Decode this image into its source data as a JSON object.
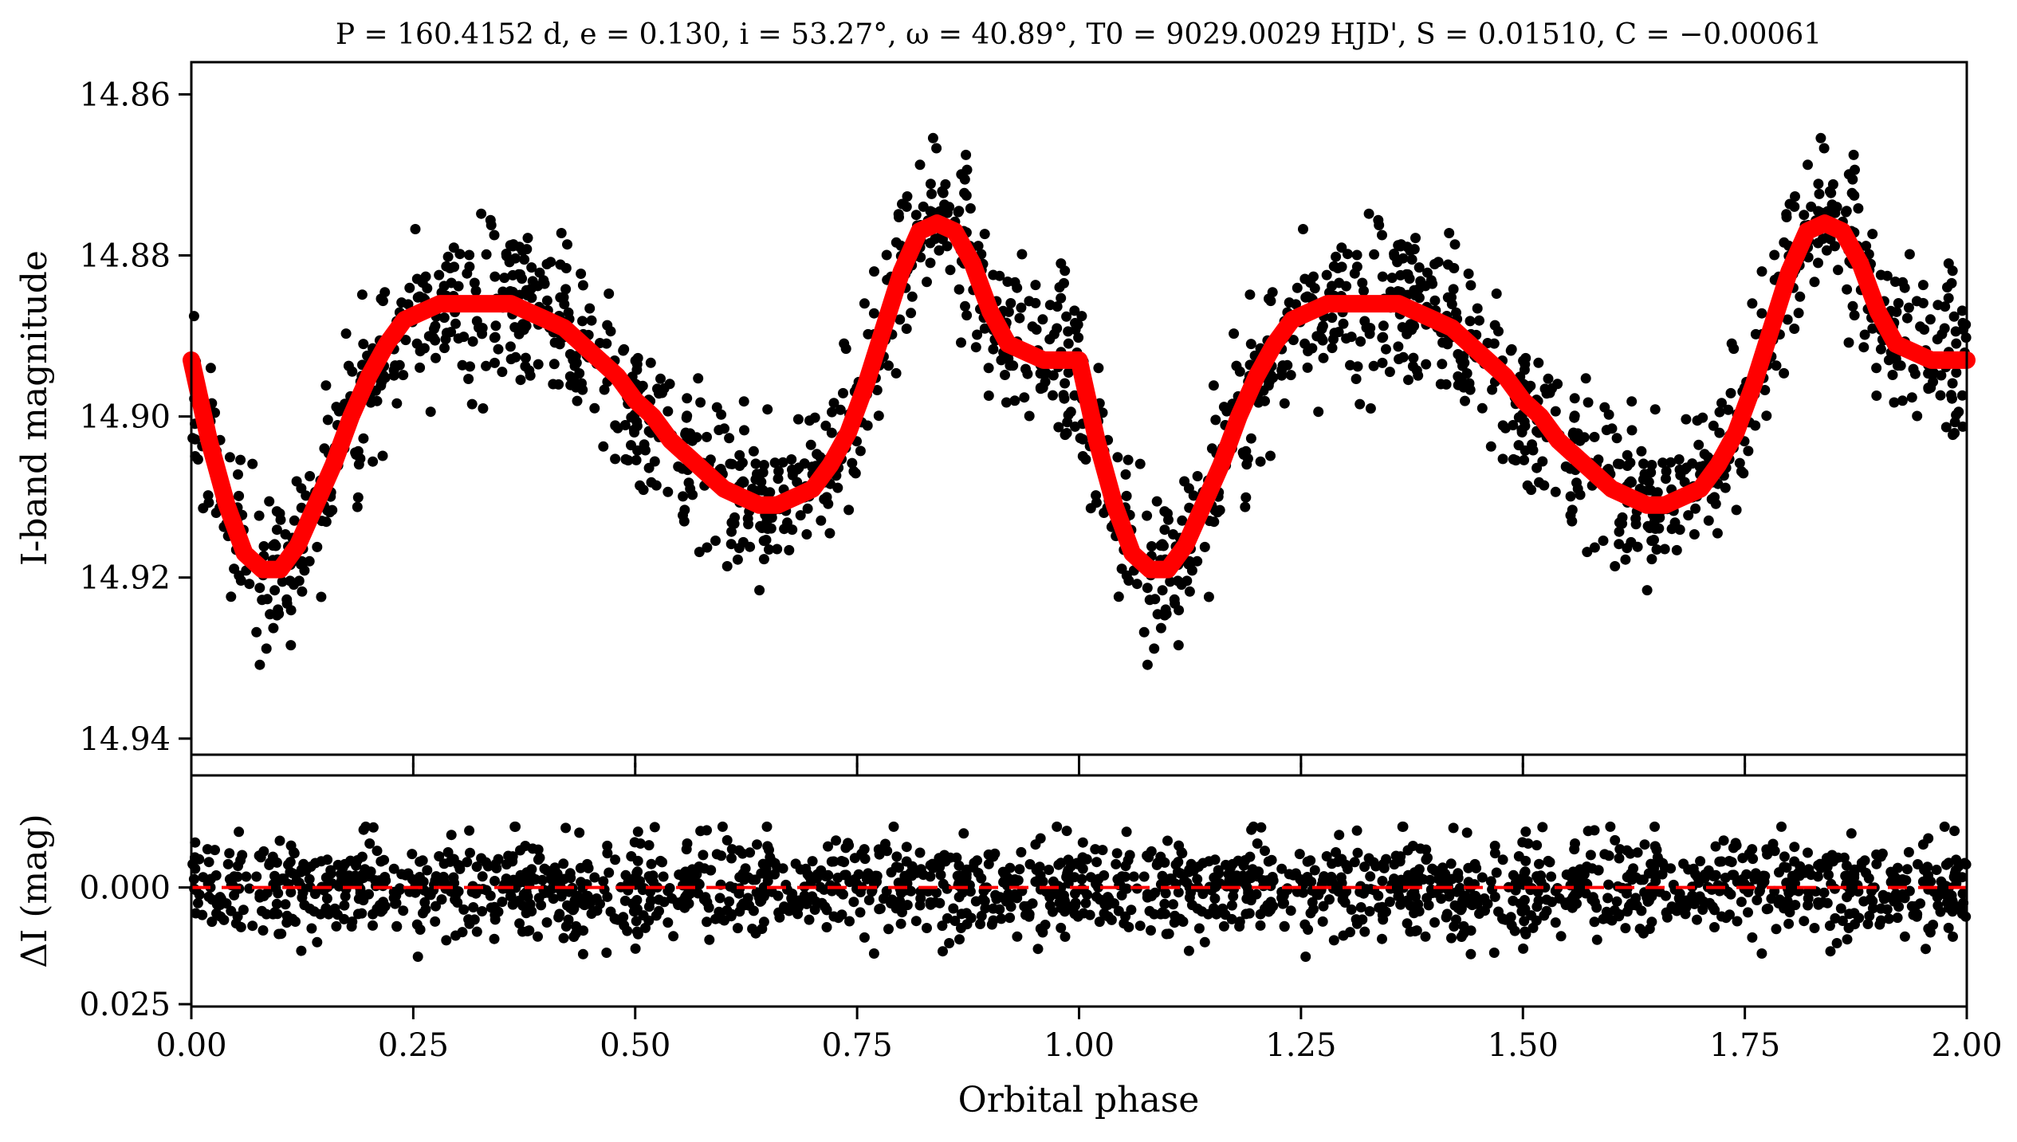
{
  "chart_data": [
    {
      "type": "scatter",
      "panel": "top",
      "title": "P = 160.4152 d, e = 0.130, i = 53.27°, ω = 40.89°, T0 = 9029.0029 HJD', S = 0.01510, C = −0.00061",
      "xlabel": "",
      "ylabel": "I-band magnitude",
      "xlim": [
        0.0,
        2.0
      ],
      "ylim": [
        14.856,
        14.942
      ],
      "y_inverted": true,
      "yticks": [
        "14.86",
        "14.88",
        "14.90",
        "14.92",
        "14.94"
      ],
      "ytick_values": [
        14.86,
        14.88,
        14.9,
        14.92,
        14.94
      ],
      "xticks_labeled": false,
      "series": [
        {
          "kind": "points",
          "color": "#000000",
          "x": [
            0.0,
            0.02,
            0.04,
            0.06,
            0.08,
            0.1,
            0.12,
            0.14,
            0.16,
            0.18,
            0.2,
            0.22,
            0.24,
            0.26,
            0.28,
            0.3,
            0.32,
            0.34,
            0.36,
            0.38,
            0.4,
            0.42,
            0.44,
            0.46,
            0.48,
            0.5,
            0.52,
            0.54,
            0.56,
            0.58,
            0.6,
            0.62,
            0.64,
            0.66,
            0.68,
            0.7,
            0.72,
            0.74,
            0.76,
            0.78,
            0.8,
            0.82,
            0.84,
            0.86,
            0.88,
            0.9,
            0.92,
            0.94,
            0.96,
            0.98,
            1.0
          ],
          "y": [
            14.893,
            14.903,
            14.911,
            14.917,
            14.919,
            14.919,
            14.916,
            14.911,
            14.906,
            14.9,
            14.895,
            14.891,
            14.888,
            14.887,
            14.886,
            14.886,
            14.886,
            14.886,
            14.886,
            14.887,
            14.888,
            14.889,
            14.891,
            14.893,
            14.895,
            14.898,
            14.9,
            14.903,
            14.905,
            14.907,
            14.909,
            14.91,
            14.911,
            14.911,
            14.91,
            14.909,
            14.906,
            14.902,
            14.896,
            14.889,
            14.882,
            14.877,
            14.876,
            14.877,
            14.881,
            14.887,
            14.891,
            14.892,
            14.893,
            14.893,
            14.893
          ],
          "scatter_mag": 0.005,
          "repeat_period": 1.0,
          "points_per_period": 900
        },
        {
          "kind": "line",
          "color": "#ff0000",
          "x": [
            0.0,
            0.02,
            0.04,
            0.06,
            0.08,
            0.1,
            0.12,
            0.14,
            0.16,
            0.18,
            0.2,
            0.22,
            0.24,
            0.26,
            0.28,
            0.3,
            0.32,
            0.34,
            0.36,
            0.38,
            0.4,
            0.42,
            0.44,
            0.46,
            0.48,
            0.5,
            0.52,
            0.54,
            0.56,
            0.58,
            0.6,
            0.62,
            0.64,
            0.66,
            0.68,
            0.7,
            0.72,
            0.74,
            0.76,
            0.78,
            0.8,
            0.82,
            0.84,
            0.86,
            0.88,
            0.9,
            0.92,
            0.94,
            0.96,
            0.98,
            1.0
          ],
          "y": [
            14.893,
            14.903,
            14.911,
            14.917,
            14.919,
            14.919,
            14.916,
            14.911,
            14.906,
            14.9,
            14.895,
            14.891,
            14.888,
            14.887,
            14.886,
            14.886,
            14.886,
            14.886,
            14.886,
            14.887,
            14.888,
            14.889,
            14.891,
            14.893,
            14.895,
            14.898,
            14.9,
            14.903,
            14.905,
            14.907,
            14.909,
            14.91,
            14.911,
            14.911,
            14.91,
            14.909,
            14.906,
            14.902,
            14.896,
            14.889,
            14.882,
            14.877,
            14.876,
            14.877,
            14.881,
            14.887,
            14.891,
            14.892,
            14.893,
            14.893,
            14.893
          ],
          "repeat_period": 1.0
        }
      ]
    },
    {
      "type": "scatter",
      "panel": "bottom",
      "xlabel": "Orbital phase",
      "ylabel": "ΔI (mag)",
      "xlim": [
        0.0,
        2.0
      ],
      "ylim": [
        -0.024,
        0.0255
      ],
      "y_inverted": true,
      "yticks": [
        "0.000",
        "0.025"
      ],
      "ytick_values": [
        0.0,
        0.025
      ],
      "xticks": [
        "0.00",
        "0.25",
        "0.50",
        "0.75",
        "1.00",
        "1.25",
        "1.50",
        "1.75",
        "2.00"
      ],
      "xtick_values": [
        0.0,
        0.25,
        0.5,
        0.75,
        1.0,
        1.25,
        1.5,
        1.75,
        2.0
      ],
      "series": [
        {
          "kind": "points",
          "color": "#000000",
          "mean": 0.0,
          "std": 0.005,
          "range": [
            -0.013,
            0.016
          ],
          "repeat_period": 1.0,
          "points_per_period": 900
        },
        {
          "kind": "dashed-line",
          "color": "#ff0000",
          "y": 0.0
        }
      ]
    }
  ]
}
